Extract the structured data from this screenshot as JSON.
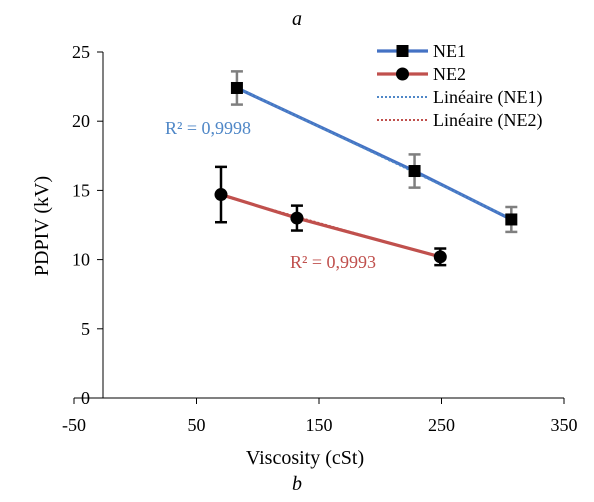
{
  "chart_data": {
    "type": "scatter",
    "title": "a",
    "caption": "b",
    "xlabel": "Viscosity (cSt)",
    "ylabel": "PDPIV (kV)",
    "xlim": [
      -50,
      350
    ],
    "ylim": [
      0,
      25
    ],
    "x_ticks": [
      -50,
      50,
      150,
      250,
      350
    ],
    "y_ticks": [
      0,
      5,
      10,
      15,
      20,
      25
    ],
    "grid": false,
    "legend_position": "top-right",
    "series": [
      {
        "name": "NE1",
        "marker": "square",
        "color": "#4472c4",
        "points": [
          {
            "x": 83,
            "y": 22.4,
            "err": 1.2
          },
          {
            "x": 228,
            "y": 16.4,
            "err": 1.2
          },
          {
            "x": 307,
            "y": 12.9,
            "err": 0.9
          }
        ]
      },
      {
        "name": "NE2",
        "marker": "circle",
        "color": "#c0504d",
        "points": [
          {
            "x": 70,
            "y": 14.7,
            "err": 2.0
          },
          {
            "x": 132,
            "y": 13.0,
            "err": 0.9
          },
          {
            "x": 249,
            "y": 10.2,
            "err": 0.6
          }
        ]
      }
    ],
    "trendlines": [
      {
        "name": "Linéaire (NE1)",
        "series": "NE1",
        "r2_label": "R² = 0,9998",
        "color": "#4f87c7",
        "x_range": [
          83,
          307
        ]
      },
      {
        "name": "Linéaire (NE2)",
        "series": "NE2",
        "r2_label": "R² = 0,9993",
        "color": "#c0504d",
        "x_range": [
          70,
          249
        ]
      }
    ]
  }
}
